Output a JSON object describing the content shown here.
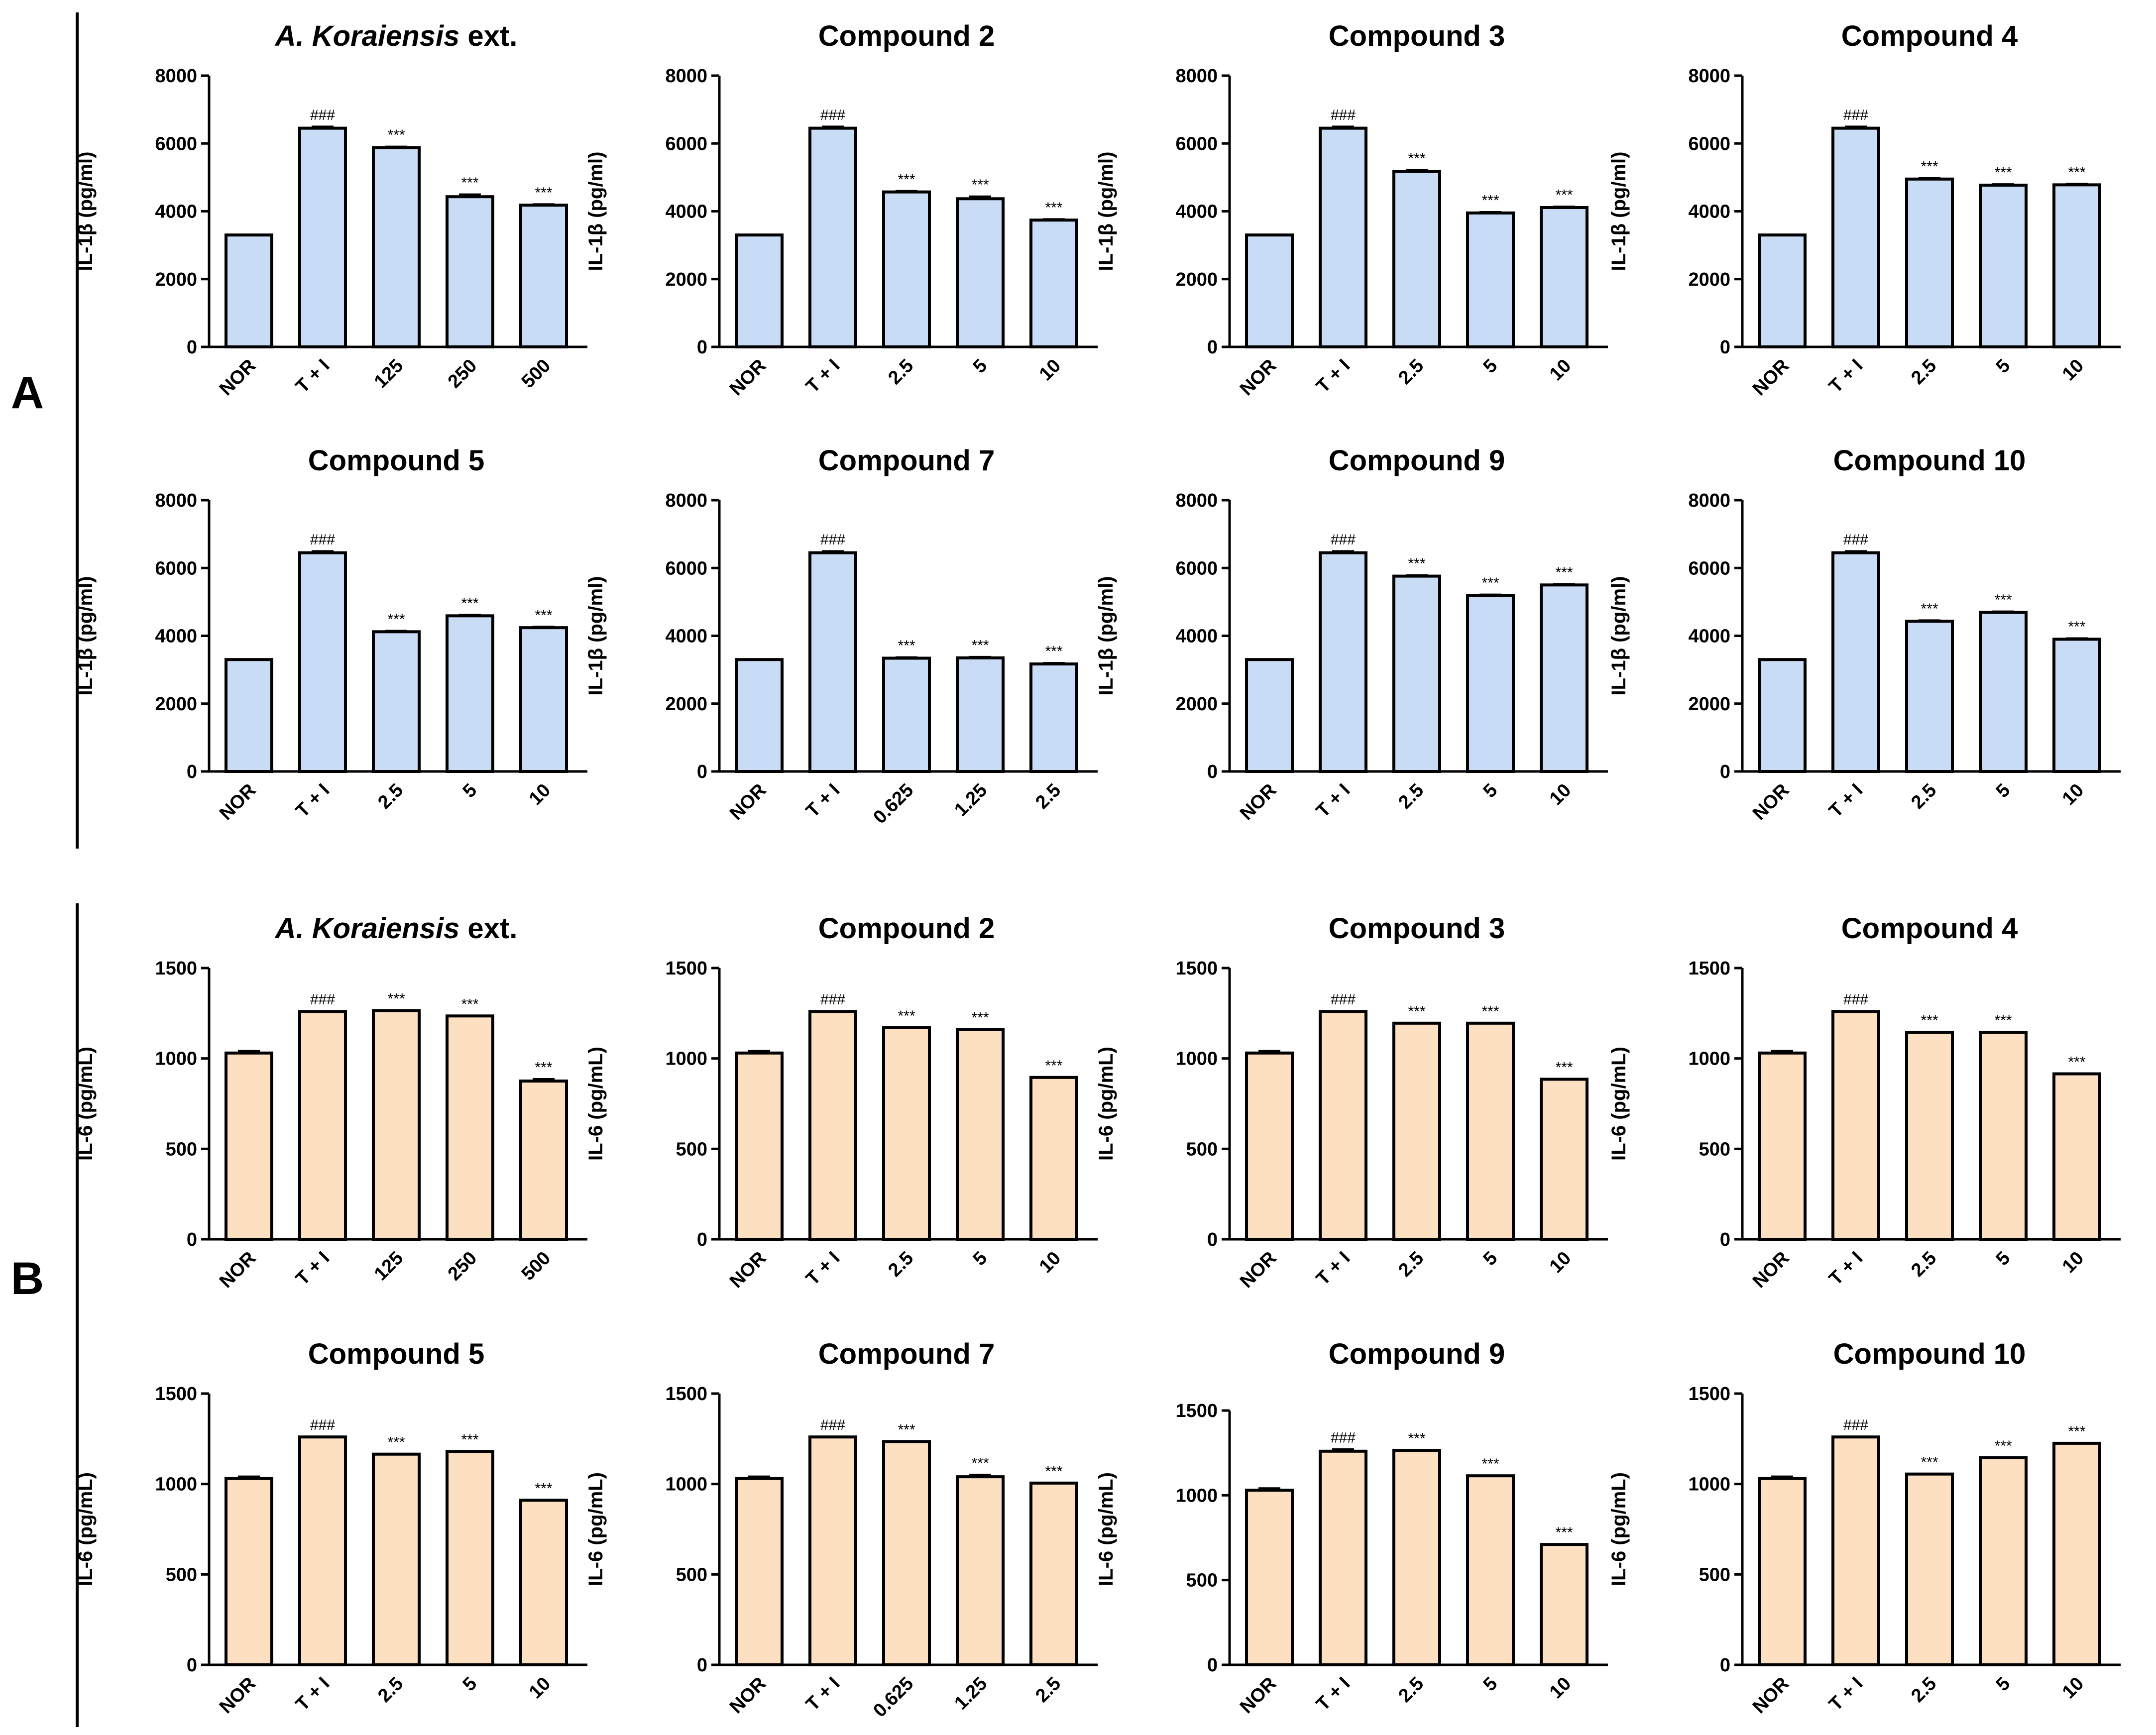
{
  "figure": {
    "panel_labels": [
      "A",
      "B"
    ],
    "colors": {
      "il1b_bar": "#c9dcf5",
      "il6_bar": "#fde0c2",
      "stroke": "#000000"
    }
  },
  "chart_data": [
    {
      "panel": "A",
      "type": "bar",
      "title_italic": "A. Koraiensis",
      "title_rest": " ext.",
      "ylabel": "IL-1β (pg/ml)",
      "ylim": [
        0,
        8000
      ],
      "yticks": [
        "0",
        "2000",
        "4000",
        "6000",
        "8000"
      ],
      "categories": [
        "NOR",
        "T + I",
        "125",
        "250",
        "500"
      ],
      "values": [
        3300,
        6450,
        5880,
        4430,
        4180
      ],
      "errors": [
        0,
        40,
        20,
        60,
        20
      ],
      "annotations": [
        "",
        "###",
        "***",
        "***",
        "***"
      ]
    },
    {
      "panel": "A",
      "type": "bar",
      "title": "Compound 2",
      "ylabel": "IL-1β (pg/ml)",
      "ylim": [
        0,
        8000
      ],
      "yticks": [
        "0",
        "2000",
        "4000",
        "6000",
        "8000"
      ],
      "categories": [
        "NOR",
        "T + I",
        "2.5",
        "5",
        "10"
      ],
      "values": [
        3300,
        6450,
        4570,
        4370,
        3740
      ],
      "errors": [
        0,
        40,
        20,
        60,
        20
      ],
      "annotations": [
        "",
        "###",
        "***",
        "***",
        "***"
      ]
    },
    {
      "panel": "A",
      "type": "bar",
      "title": "Compound 3",
      "ylabel": "IL-1β (pg/ml)",
      "ylim": [
        0,
        8000
      ],
      "yticks": [
        "0",
        "2000",
        "4000",
        "6000",
        "8000"
      ],
      "categories": [
        "NOR",
        "T + I",
        "2.5",
        "5",
        "10"
      ],
      "values": [
        3300,
        6450,
        5170,
        3950,
        4110
      ],
      "errors": [
        0,
        40,
        40,
        20,
        20
      ],
      "annotations": [
        "",
        "###",
        "***",
        "***",
        "***"
      ]
    },
    {
      "panel": "A",
      "type": "bar",
      "title": "Compound 4",
      "ylabel": "IL-1β (pg/ml)",
      "ylim": [
        0,
        8000
      ],
      "yticks": [
        "0",
        "2000",
        "4000",
        "6000",
        "8000"
      ],
      "categories": [
        "NOR",
        "T + I",
        "2.5",
        "5",
        "10"
      ],
      "values": [
        3300,
        6450,
        4950,
        4770,
        4780
      ],
      "errors": [
        0,
        40,
        20,
        20,
        20
      ],
      "annotations": [
        "",
        "###",
        "***",
        "***",
        "***"
      ]
    },
    {
      "panel": "A",
      "type": "bar",
      "title": "Compound 5",
      "ylabel": "IL-1β (pg/ml)",
      "ylim": [
        0,
        8000
      ],
      "yticks": [
        "0",
        "2000",
        "4000",
        "6000",
        "8000"
      ],
      "categories": [
        "NOR",
        "T + I",
        "2.5",
        "5",
        "10"
      ],
      "values": [
        3300,
        6450,
        4120,
        4590,
        4240
      ],
      "errors": [
        0,
        40,
        20,
        20,
        20
      ],
      "annotations": [
        "",
        "###",
        "***",
        "***",
        "***"
      ]
    },
    {
      "panel": "A",
      "type": "bar",
      "title": "Compound 7",
      "ylabel": "IL-1β (pg/ml)",
      "ylim": [
        0,
        8000
      ],
      "yticks": [
        "0",
        "2000",
        "4000",
        "6000",
        "8000"
      ],
      "categories": [
        "NOR",
        "T + I",
        "0.625",
        "1.25",
        "2.5"
      ],
      "values": [
        3300,
        6450,
        3340,
        3350,
        3170
      ],
      "errors": [
        0,
        40,
        20,
        20,
        20
      ],
      "annotations": [
        "",
        "###",
        "***",
        "***",
        "***"
      ]
    },
    {
      "panel": "A",
      "type": "bar",
      "title": "Compound 9",
      "ylabel": "IL-1β (pg/ml)",
      "ylim": [
        0,
        8000
      ],
      "yticks": [
        "0",
        "2000",
        "4000",
        "6000",
        "8000"
      ],
      "categories": [
        "NOR",
        "T + I",
        "2.5",
        "5",
        "10"
      ],
      "values": [
        3300,
        6450,
        5760,
        5190,
        5500
      ],
      "errors": [
        0,
        40,
        20,
        20,
        20
      ],
      "annotations": [
        "",
        "###",
        "***",
        "***",
        "***"
      ]
    },
    {
      "panel": "A",
      "type": "bar",
      "title": "Compound 10",
      "ylabel": "IL-1β (pg/ml)",
      "ylim": [
        0,
        8000
      ],
      "yticks": [
        "0",
        "2000",
        "4000",
        "6000",
        "8000"
      ],
      "categories": [
        "NOR",
        "T + I",
        "2.5",
        "5",
        "10"
      ],
      "values": [
        3300,
        6450,
        4430,
        4690,
        3900
      ],
      "errors": [
        0,
        40,
        20,
        20,
        20
      ],
      "annotations": [
        "",
        "###",
        "***",
        "***",
        "***"
      ]
    },
    {
      "panel": "B",
      "type": "bar",
      "title_italic": "A. Koraiensis",
      "title_rest": " ext.",
      "ylabel": "IL-6 (pg/mL)",
      "ylim": [
        0,
        1500
      ],
      "yticks": [
        "0",
        "500",
        "1000",
        "1500"
      ],
      "categories": [
        "NOR",
        "T + I",
        "125",
        "250",
        "500"
      ],
      "values": [
        1030,
        1260,
        1265,
        1235,
        875
      ],
      "errors": [
        10,
        0,
        0,
        0,
        10
      ],
      "annotations": [
        "",
        "###",
        "***",
        "***",
        "***"
      ]
    },
    {
      "panel": "B",
      "type": "bar",
      "title": "Compound 2",
      "ylabel": "IL-6 (pg/mL)",
      "ylim": [
        0,
        1500
      ],
      "yticks": [
        "0",
        "500",
        "1000",
        "1500"
      ],
      "categories": [
        "NOR",
        "T + I",
        "2.5",
        "5",
        "10"
      ],
      "values": [
        1030,
        1260,
        1170,
        1160,
        895
      ],
      "errors": [
        10,
        0,
        0,
        0,
        0
      ],
      "annotations": [
        "",
        "###",
        "***",
        "***",
        "***"
      ]
    },
    {
      "panel": "B",
      "type": "bar",
      "title": "Compound 3",
      "ylabel": "IL-6 (pg/mL)",
      "ylim": [
        0,
        1500
      ],
      "yticks": [
        "0",
        "500",
        "1000",
        "1500"
      ],
      "categories": [
        "NOR",
        "T + I",
        "2.5",
        "5",
        "10"
      ],
      "values": [
        1030,
        1260,
        1195,
        1195,
        885
      ],
      "errors": [
        10,
        0,
        0,
        0,
        0
      ],
      "annotations": [
        "",
        "###",
        "***",
        "***",
        "***"
      ]
    },
    {
      "panel": "B",
      "type": "bar",
      "title": "Compound 4",
      "ylabel": "IL-6 (pg/mL)",
      "ylim": [
        0,
        1500
      ],
      "yticks": [
        "0",
        "500",
        "1000",
        "1500"
      ],
      "categories": [
        "NOR",
        "T + I",
        "2.5",
        "5",
        "10"
      ],
      "values": [
        1030,
        1260,
        1145,
        1145,
        915
      ],
      "errors": [
        10,
        0,
        0,
        0,
        0
      ],
      "annotations": [
        "",
        "###",
        "***",
        "***",
        "***"
      ]
    },
    {
      "panel": "B",
      "type": "bar",
      "title": "Compound 5",
      "ylabel": "IL-6 (pg/mL)",
      "ylim": [
        0,
        1500
      ],
      "yticks": [
        "0",
        "500",
        "1000",
        "1500"
      ],
      "categories": [
        "NOR",
        "T + I",
        "2.5",
        "5",
        "10"
      ],
      "values": [
        1030,
        1260,
        1165,
        1180,
        910
      ],
      "errors": [
        10,
        0,
        0,
        0,
        0
      ],
      "annotations": [
        "",
        "###",
        "***",
        "***",
        "***"
      ]
    },
    {
      "panel": "B",
      "type": "bar",
      "title": "Compound 7",
      "ylabel": "IL-6 (pg/mL)",
      "ylim": [
        0,
        1500
      ],
      "yticks": [
        "0",
        "500",
        "1000",
        "1500"
      ],
      "categories": [
        "NOR",
        "T + I",
        "0.625",
        "1.25",
        "2.5"
      ],
      "values": [
        1030,
        1260,
        1235,
        1040,
        1005
      ],
      "errors": [
        10,
        0,
        0,
        10,
        0
      ],
      "annotations": [
        "",
        "###",
        "***",
        "***",
        "***"
      ]
    },
    {
      "panel": "B",
      "type": "bar",
      "title": "Compound 9",
      "ylabel": "IL-6 (pg/mL)",
      "ylim": [
        0,
        1600
      ],
      "yticks": [
        "0",
        "500",
        "1000",
        "1500"
      ],
      "categories": [
        "NOR",
        "T + I",
        "2.5",
        "5",
        "10"
      ],
      "values": [
        1030,
        1260,
        1265,
        1115,
        710
      ],
      "errors": [
        10,
        10,
        0,
        0,
        0
      ],
      "annotations": [
        "",
        "###",
        "***",
        "***",
        "***"
      ]
    },
    {
      "panel": "B",
      "type": "bar",
      "title": "Compound 10",
      "ylabel": "IL-6 (pg/mL)",
      "ylim": [
        0,
        1500
      ],
      "yticks": [
        "0",
        "500",
        "1000",
        "1500"
      ],
      "categories": [
        "NOR",
        "T + I",
        "2.5",
        "5",
        "10"
      ],
      "values": [
        1030,
        1260,
        1055,
        1145,
        1225
      ],
      "errors": [
        10,
        0,
        0,
        0,
        0
      ],
      "annotations": [
        "",
        "###",
        "***",
        "***",
        "***"
      ]
    }
  ]
}
